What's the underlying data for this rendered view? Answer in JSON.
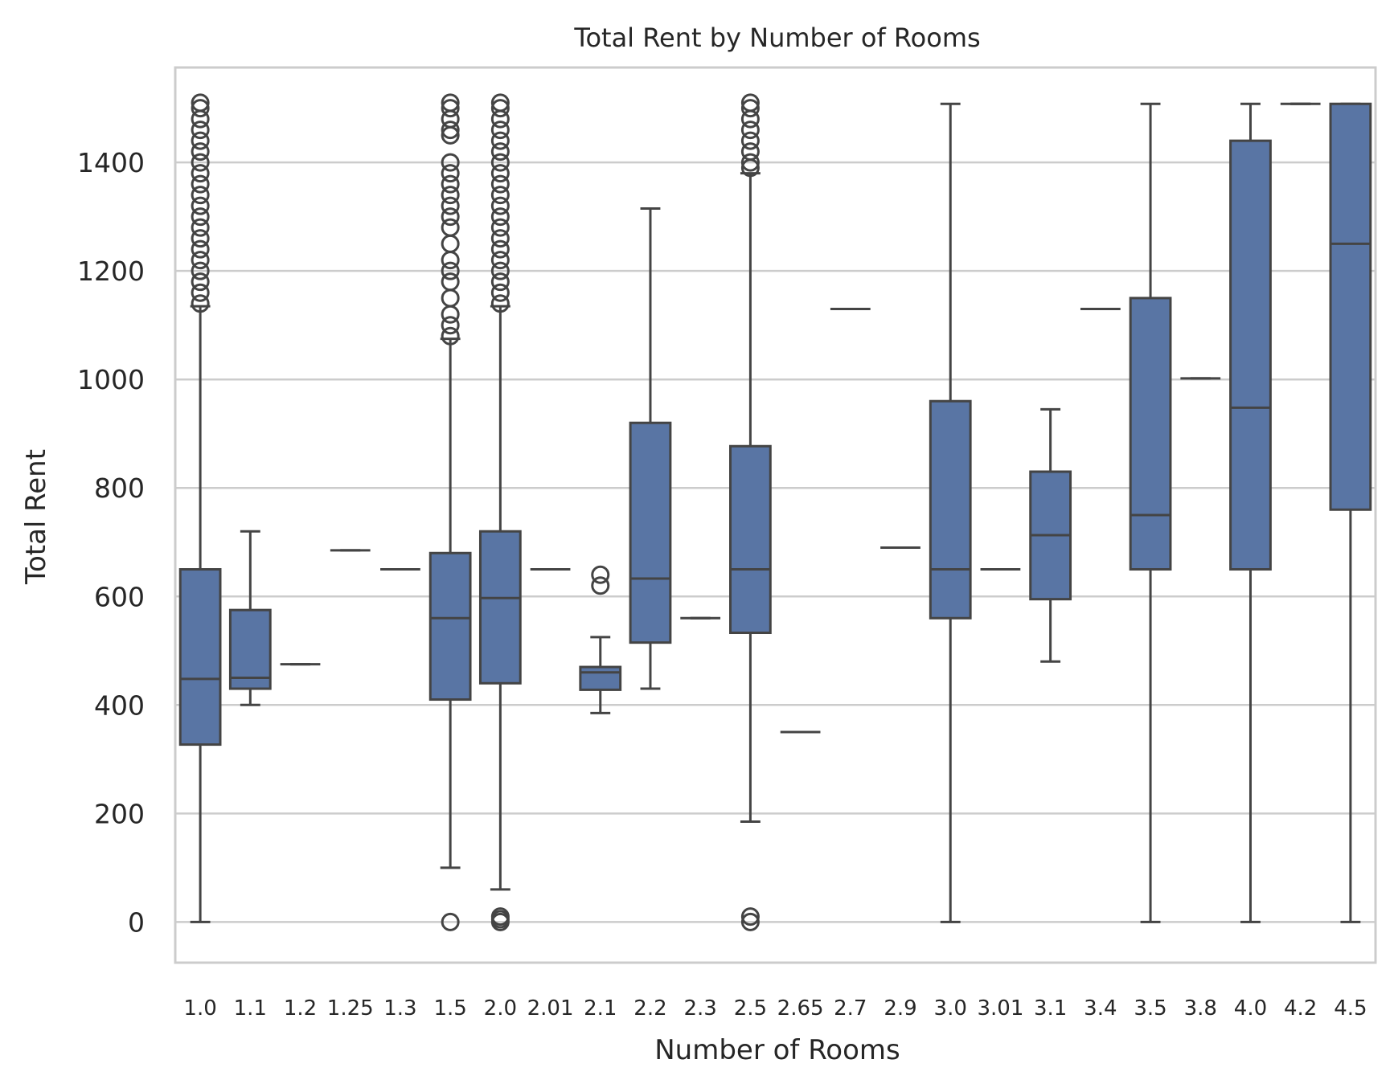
{
  "chart_data": {
    "type": "box",
    "title": "Total Rent by Number of Rooms",
    "xlabel": "Number of Rooms",
    "ylabel": "Total Rent",
    "ylim": [
      -75,
      1575
    ],
    "yticks": [
      0,
      200,
      400,
      600,
      800,
      1000,
      1200,
      1400
    ],
    "grid": true,
    "box_color": "#5975a4",
    "line_color": "#444444",
    "grid_color": "#cccccc",
    "categories": [
      "1.0",
      "1.1",
      "1.2",
      "1.25",
      "1.3",
      "1.5",
      "2.0",
      "2.01",
      "2.1",
      "2.2",
      "2.3",
      "2.5",
      "2.65",
      "2.7",
      "2.9",
      "3.0",
      "3.01",
      "3.1",
      "3.4",
      "3.5",
      "3.8",
      "4.0",
      "4.2",
      "4.5"
    ],
    "boxes": [
      {
        "whislo": 0,
        "q1": 327,
        "med": 448,
        "q3": 650,
        "whishi": 1135,
        "fliers": [
          1140,
          1160,
          1180,
          1200,
          1220,
          1240,
          1260,
          1280,
          1300,
          1320,
          1340,
          1360,
          1380,
          1400,
          1420,
          1440,
          1460,
          1480,
          1500,
          1510
        ]
      },
      {
        "whislo": 400,
        "q1": 430,
        "med": 450,
        "q3": 575,
        "whishi": 720,
        "fliers": []
      },
      {
        "whislo": 475,
        "q1": 475,
        "med": 475,
        "q3": 475,
        "whishi": 475,
        "fliers": []
      },
      {
        "whislo": 685,
        "q1": 685,
        "med": 685,
        "q3": 685,
        "whishi": 685,
        "fliers": []
      },
      {
        "whislo": 650,
        "q1": 650,
        "med": 650,
        "q3": 650,
        "whishi": 650,
        "fliers": []
      },
      {
        "whislo": 100,
        "q1": 410,
        "med": 560,
        "q3": 680,
        "whishi": 1075,
        "fliers": [
          0,
          1080,
          1100,
          1120,
          1150,
          1180,
          1200,
          1220,
          1250,
          1280,
          1300,
          1320,
          1340,
          1360,
          1380,
          1400,
          1450,
          1460,
          1480,
          1500,
          1510
        ]
      },
      {
        "whislo": 60,
        "q1": 440,
        "med": 597,
        "q3": 720,
        "whishi": 1135,
        "fliers": [
          0,
          5,
          10,
          1140,
          1160,
          1180,
          1200,
          1220,
          1240,
          1260,
          1280,
          1300,
          1320,
          1340,
          1360,
          1380,
          1400,
          1420,
          1440,
          1460,
          1480,
          1500,
          1510
        ]
      },
      {
        "whislo": 650,
        "q1": 650,
        "med": 650,
        "q3": 650,
        "whishi": 650,
        "fliers": []
      },
      {
        "whislo": 385,
        "q1": 428,
        "med": 460,
        "q3": 470,
        "whishi": 525,
        "fliers": [
          620,
          640
        ]
      },
      {
        "whislo": 430,
        "q1": 515,
        "med": 633,
        "q3": 920,
        "whishi": 1315,
        "fliers": []
      },
      {
        "whislo": 560,
        "q1": 560,
        "med": 560,
        "q3": 560,
        "whishi": 560,
        "fliers": []
      },
      {
        "whislo": 185,
        "q1": 533,
        "med": 650,
        "q3": 877,
        "whishi": 1380,
        "fliers": [
          0,
          10,
          1390,
          1400,
          1420,
          1440,
          1460,
          1480,
          1500,
          1510
        ]
      },
      {
        "whislo": 350,
        "q1": 350,
        "med": 350,
        "q3": 350,
        "whishi": 350,
        "fliers": []
      },
      {
        "whislo": 1130,
        "q1": 1130,
        "med": 1130,
        "q3": 1130,
        "whishi": 1130,
        "fliers": []
      },
      {
        "whislo": 690,
        "q1": 690,
        "med": 690,
        "q3": 690,
        "whishi": 690,
        "fliers": []
      },
      {
        "whislo": 0,
        "q1": 560,
        "med": 650,
        "q3": 960,
        "whishi": 1508,
        "fliers": []
      },
      {
        "whislo": 650,
        "q1": 650,
        "med": 650,
        "q3": 650,
        "whishi": 650,
        "fliers": []
      },
      {
        "whislo": 480,
        "q1": 595,
        "med": 713,
        "q3": 830,
        "whishi": 945,
        "fliers": []
      },
      {
        "whislo": 1130,
        "q1": 1130,
        "med": 1130,
        "q3": 1130,
        "whishi": 1130,
        "fliers": []
      },
      {
        "whislo": 0,
        "q1": 650,
        "med": 750,
        "q3": 1150,
        "whishi": 1508,
        "fliers": []
      },
      {
        "whislo": 1002,
        "q1": 1002,
        "med": 1002,
        "q3": 1002,
        "whishi": 1002,
        "fliers": []
      },
      {
        "whislo": 0,
        "q1": 650,
        "med": 948,
        "q3": 1440,
        "whishi": 1508,
        "fliers": []
      },
      {
        "whislo": 1508,
        "q1": 1508,
        "med": 1508,
        "q3": 1508,
        "whishi": 1508,
        "fliers": []
      },
      {
        "whislo": 0,
        "q1": 760,
        "med": 1250,
        "q3": 1508,
        "whishi": 1508,
        "fliers": []
      }
    ]
  }
}
